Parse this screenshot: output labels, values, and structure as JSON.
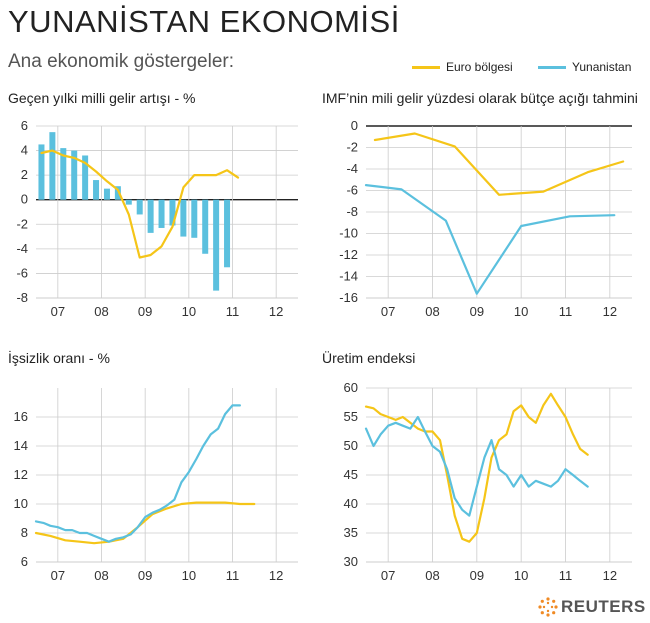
{
  "title": "YUNANİSTAN EKONOMİSİ",
  "subtitle": "Ana ekonomik göstergeler:",
  "legend": [
    {
      "name": "Euro bölgesi",
      "color": "#f5c518"
    },
    {
      "name": "Yunanistan",
      "color": "#5bc0de"
    }
  ],
  "colors": {
    "euro": "#f5c518",
    "greece": "#5bc0de",
    "grid": "#cccccc",
    "axis": "#222222"
  },
  "source": "REUTERS",
  "chart_data": [
    {
      "type": "bar",
      "title": "Geçen yılki milli gelir artışı  - %",
      "ylim": [
        -8,
        6
      ],
      "yticks": [
        -8,
        -6,
        -4,
        -2,
        0,
        2,
        4,
        6
      ],
      "xlim": [
        2006.5,
        2012.5
      ],
      "xticks": [
        "07",
        "08",
        "09",
        "10",
        "11",
        "12"
      ],
      "grid": true,
      "series": [
        {
          "name": "Yunanistan",
          "kind": "bar",
          "x": [
            2006.625,
            2006.875,
            2007.125,
            2007.375,
            2007.625,
            2007.875,
            2008.125,
            2008.375,
            2008.625,
            2008.875,
            2009.125,
            2009.375,
            2009.625,
            2009.875,
            2010.125,
            2010.375,
            2010.625,
            2010.875
          ],
          "values": [
            4.5,
            5.5,
            4.2,
            4.0,
            3.6,
            1.6,
            0.9,
            1.1,
            -0.4,
            -1.2,
            -2.7,
            -2.3,
            -2.1,
            -3.0,
            -3.1,
            -4.4,
            -7.4,
            -5.5
          ]
        },
        {
          "name": "Euro bölgesi",
          "kind": "line",
          "x": [
            2006.625,
            2006.875,
            2007.125,
            2007.375,
            2007.625,
            2007.875,
            2008.125,
            2008.375,
            2008.625,
            2008.875,
            2009.125,
            2009.375,
            2009.625,
            2009.875,
            2010.125,
            2010.375,
            2010.625,
            2010.875,
            2011.125
          ],
          "values": [
            3.8,
            4.0,
            3.6,
            3.4,
            3.0,
            2.3,
            1.5,
            0.8,
            -1.2,
            -4.7,
            -4.5,
            -3.8,
            -2.2,
            1.0,
            2.0,
            2.0,
            2.0,
            2.4,
            1.8
          ]
        }
      ]
    },
    {
      "type": "line",
      "title": "IMF’nin mili gelir yüzdesi olarak bütçe açığı tahmini",
      "ylim": [
        -16,
        0
      ],
      "yticks": [
        -16,
        -14,
        -12,
        -10,
        -8,
        -6,
        -4,
        -2,
        0
      ],
      "xlim": [
        2006.5,
        2012.5
      ],
      "xticks": [
        "07",
        "08",
        "09",
        "10",
        "11",
        "12"
      ],
      "grid": true,
      "series": [
        {
          "name": "Euro bölgesi",
          "x": [
            2006.7,
            2007.6,
            2008.5,
            2009.5,
            2010.5,
            2011.5,
            2012.3
          ],
          "values": [
            -1.3,
            -0.7,
            -1.9,
            -6.4,
            -6.1,
            -4.3,
            -3.3
          ]
        },
        {
          "name": "Yunanistan",
          "x": [
            2006.5,
            2007.3,
            2008.3,
            2009.0,
            2010.0,
            2011.1,
            2012.1
          ],
          "values": [
            -5.5,
            -5.9,
            -8.8,
            -15.6,
            -9.3,
            -8.4,
            -8.3
          ]
        }
      ]
    },
    {
      "type": "line",
      "title": "İşsizlik oranı - %",
      "ylim": [
        6,
        18
      ],
      "yticks": [
        6,
        8,
        10,
        12,
        14,
        16
      ],
      "xlim": [
        2006.5,
        2012.5
      ],
      "xticks": [
        "07",
        "08",
        "09",
        "10",
        "11",
        "12"
      ],
      "grid": true,
      "series": [
        {
          "name": "Euro bölgesi",
          "x": [
            2006.5,
            2006.83,
            2007.17,
            2007.5,
            2007.83,
            2008.17,
            2008.5,
            2008.83,
            2009.17,
            2009.5,
            2009.83,
            2010.17,
            2010.5,
            2010.83,
            2011.17,
            2011.5
          ],
          "values": [
            8.0,
            7.8,
            7.5,
            7.4,
            7.3,
            7.4,
            7.6,
            8.4,
            9.3,
            9.7,
            10.0,
            10.1,
            10.1,
            10.1,
            10.0,
            10.0
          ]
        },
        {
          "name": "Yunanistan",
          "x": [
            2006.5,
            2006.67,
            2006.83,
            2007.0,
            2007.17,
            2007.33,
            2007.5,
            2007.67,
            2007.83,
            2008.0,
            2008.17,
            2008.33,
            2008.5,
            2008.67,
            2008.83,
            2009.0,
            2009.17,
            2009.33,
            2009.5,
            2009.67,
            2009.83,
            2010.0,
            2010.17,
            2010.33,
            2010.5,
            2010.67,
            2010.83,
            2011.0,
            2011.17
          ],
          "values": [
            8.8,
            8.7,
            8.5,
            8.4,
            8.2,
            8.2,
            8.0,
            8.0,
            7.8,
            7.6,
            7.4,
            7.6,
            7.7,
            7.9,
            8.4,
            9.1,
            9.4,
            9.6,
            9.9,
            10.3,
            11.5,
            12.2,
            13.1,
            14.0,
            14.8,
            15.2,
            16.2,
            16.8,
            16.8
          ]
        }
      ]
    },
    {
      "type": "line",
      "title": "Üretim endeksi",
      "ylim": [
        30,
        60
      ],
      "yticks": [
        30,
        35,
        40,
        45,
        50,
        55,
        60
      ],
      "xlim": [
        2006.5,
        2012.5
      ],
      "xticks": [
        "07",
        "08",
        "09",
        "10",
        "11",
        "12"
      ],
      "grid": true,
      "series": [
        {
          "name": "Euro bölgesi",
          "x": [
            2006.5,
            2006.67,
            2006.83,
            2007.0,
            2007.17,
            2007.33,
            2007.5,
            2007.67,
            2007.83,
            2008.0,
            2008.17,
            2008.33,
            2008.5,
            2008.67,
            2008.83,
            2009.0,
            2009.17,
            2009.33,
            2009.5,
            2009.67,
            2009.83,
            2010.0,
            2010.17,
            2010.33,
            2010.5,
            2010.67,
            2010.83,
            2011.0,
            2011.17,
            2011.33,
            2011.5
          ],
          "values": [
            56.8,
            56.5,
            55.5,
            55.0,
            54.5,
            55.0,
            54.0,
            53.0,
            52.5,
            52.5,
            51.0,
            45.0,
            38.0,
            34.0,
            33.5,
            35.0,
            41.0,
            48.0,
            51.0,
            52.0,
            56.0,
            57.0,
            55.0,
            54.0,
            57.0,
            59.0,
            57.0,
            55.0,
            52.0,
            49.5,
            48.5
          ]
        },
        {
          "name": "Yunanistan",
          "x": [
            2006.5,
            2006.67,
            2006.83,
            2007.0,
            2007.17,
            2007.33,
            2007.5,
            2007.67,
            2007.83,
            2008.0,
            2008.17,
            2008.33,
            2008.5,
            2008.67,
            2008.83,
            2009.0,
            2009.17,
            2009.33,
            2009.5,
            2009.67,
            2009.83,
            2010.0,
            2010.17,
            2010.33,
            2010.5,
            2010.67,
            2010.83,
            2011.0,
            2011.17,
            2011.33,
            2011.5
          ],
          "values": [
            53.0,
            50.0,
            52.0,
            53.5,
            54.0,
            53.5,
            53.0,
            55.0,
            52.5,
            50.0,
            49.0,
            46.0,
            41.0,
            39.0,
            38.0,
            43.0,
            48.0,
            51.0,
            46.0,
            45.0,
            43.0,
            45.0,
            43.0,
            44.0,
            43.5,
            43.0,
            44.0,
            46.0,
            45.0,
            44.0,
            43.0
          ]
        }
      ]
    }
  ]
}
